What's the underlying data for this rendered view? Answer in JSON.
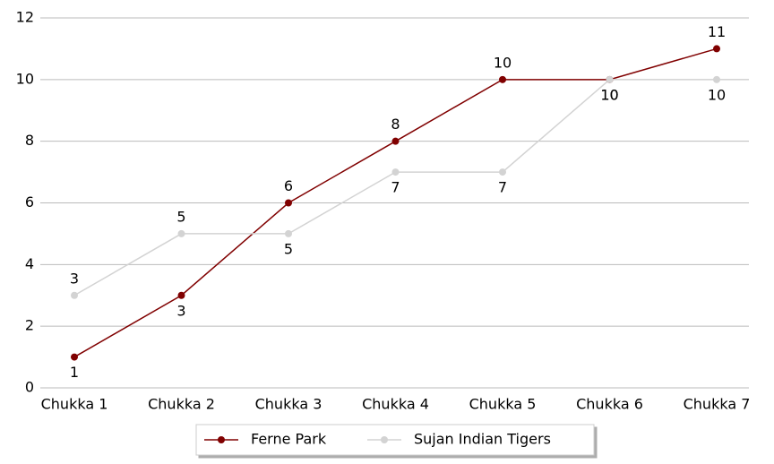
{
  "chart_data": {
    "type": "line",
    "categories": [
      "Chukka 1",
      "Chukka 2",
      "Chukka 3",
      "Chukka 4",
      "Chukka 5",
      "Chukka 6",
      "Chukka 7"
    ],
    "series": [
      {
        "name": "Ferne Park",
        "color": "#800000",
        "values": [
          1,
          3,
          6,
          8,
          10,
          10,
          11
        ]
      },
      {
        "name": "Sujan Indian Tigers",
        "color": "#d3d3d3",
        "values": [
          3,
          5,
          5,
          7,
          7,
          10,
          10
        ]
      }
    ],
    "ylim": [
      0,
      12
    ],
    "yticks": [
      0,
      2,
      4,
      6,
      8,
      10,
      12
    ],
    "grid": true,
    "legend": "bottom"
  }
}
